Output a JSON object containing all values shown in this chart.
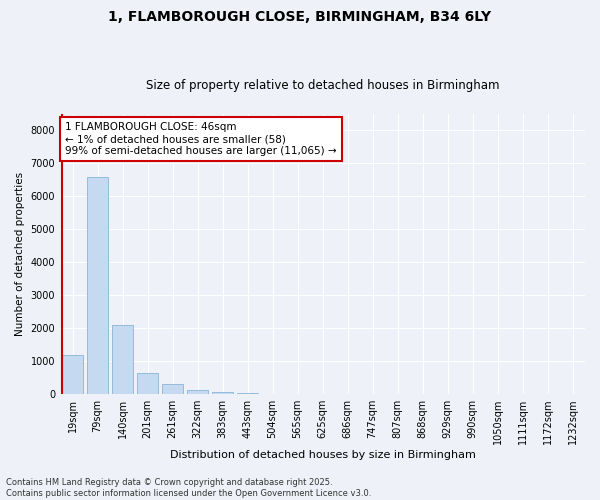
{
  "title1": "1, FLAMBOROUGH CLOSE, BIRMINGHAM, B34 6LY",
  "title2": "Size of property relative to detached houses in Birmingham",
  "xlabel": "Distribution of detached houses by size in Birmingham",
  "ylabel": "Number of detached properties",
  "categories": [
    "19sqm",
    "79sqm",
    "140sqm",
    "201sqm",
    "261sqm",
    "322sqm",
    "383sqm",
    "443sqm",
    "504sqm",
    "565sqm",
    "625sqm",
    "686sqm",
    "747sqm",
    "807sqm",
    "868sqm",
    "929sqm",
    "990sqm",
    "1050sqm",
    "1111sqm",
    "1172sqm",
    "1232sqm"
  ],
  "values": [
    1200,
    6600,
    2100,
    650,
    300,
    120,
    60,
    28,
    14,
    5,
    2,
    1,
    0,
    0,
    0,
    0,
    0,
    0,
    0,
    0,
    0
  ],
  "bar_color": "#c5d9f0",
  "bar_edge_color": "#8ab4d8",
  "highlight_color": "#cc0000",
  "annotation_box_text": "1 FLAMBOROUGH CLOSE: 46sqm\n← 1% of detached houses are smaller (58)\n99% of semi-detached houses are larger (11,065) →",
  "annotation_box_color": "#ffffff",
  "annotation_box_edge_color": "#cc0000",
  "ylim": [
    0,
    8500
  ],
  "yticks": [
    0,
    1000,
    2000,
    3000,
    4000,
    5000,
    6000,
    7000,
    8000
  ],
  "bg_color": "#eef2f8",
  "plot_bg_color": "#eef2f8",
  "footer_text": "Contains HM Land Registry data © Crown copyright and database right 2025.\nContains public sector information licensed under the Open Government Licence v3.0.",
  "title1_fontsize": 10,
  "title2_fontsize": 8.5,
  "xlabel_fontsize": 8,
  "ylabel_fontsize": 7.5,
  "tick_fontsize": 7,
  "annotation_fontsize": 7.5,
  "footer_fontsize": 6
}
